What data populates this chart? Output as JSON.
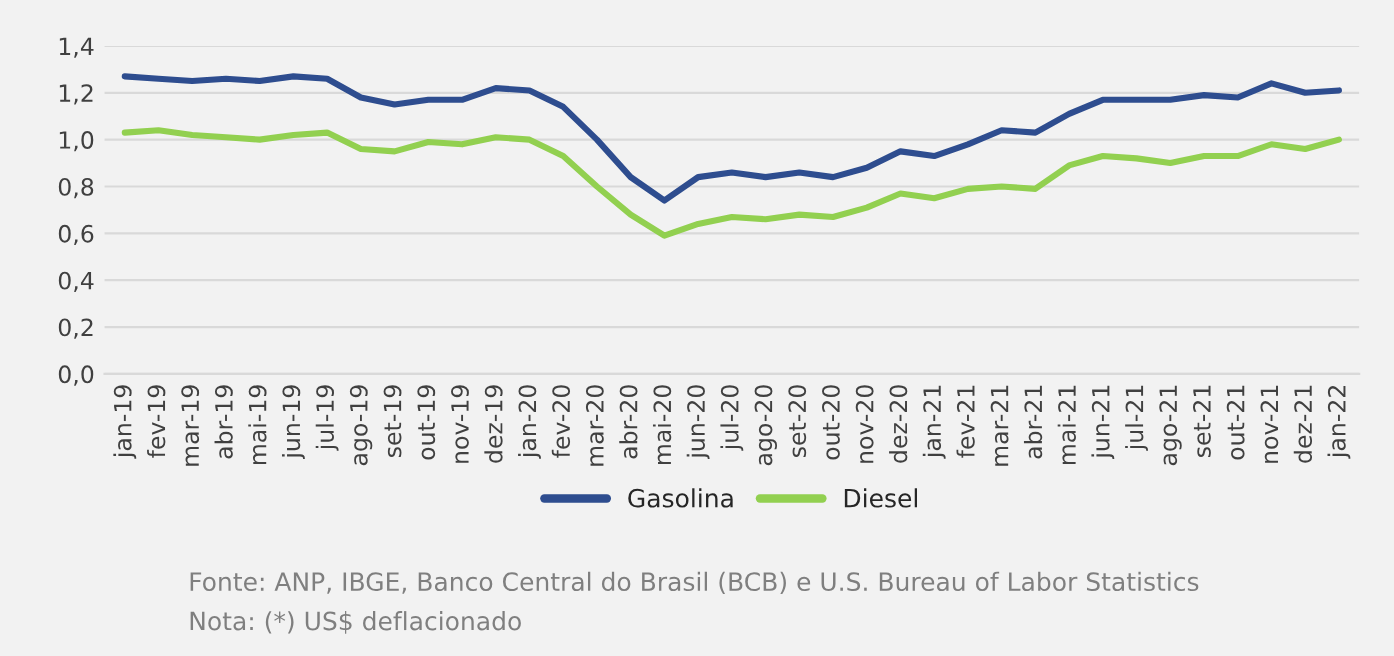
{
  "chart_data": {
    "type": "line",
    "categories": [
      "jan-19",
      "fev-19",
      "mar-19",
      "abr-19",
      "mai-19",
      "jun-19",
      "jul-19",
      "ago-19",
      "set-19",
      "out-19",
      "nov-19",
      "dez-19",
      "jan-20",
      "fev-20",
      "mar-20",
      "abr-20",
      "mai-20",
      "jun-20",
      "jul-20",
      "ago-20",
      "set-20",
      "out-20",
      "nov-20",
      "dez-20",
      "jan-21",
      "fev-21",
      "mar-21",
      "abr-21",
      "mai-21",
      "jun-21",
      "jul-21",
      "ago-21",
      "set-21",
      "out-21",
      "nov-21",
      "dez-21",
      "jan-22"
    ],
    "series": [
      {
        "name": "Gasolina",
        "color": "#2e4d8f",
        "values": [
          1.27,
          1.26,
          1.25,
          1.26,
          1.25,
          1.27,
          1.26,
          1.18,
          1.15,
          1.17,
          1.17,
          1.22,
          1.21,
          1.14,
          1.0,
          0.84,
          0.74,
          0.84,
          0.86,
          0.84,
          0.86,
          0.84,
          0.88,
          0.95,
          0.93,
          0.98,
          1.04,
          1.03,
          1.11,
          1.17,
          1.17,
          1.17,
          1.19,
          1.18,
          1.24,
          1.2,
          1.21
        ]
      },
      {
        "name": "Diesel",
        "color": "#92d050",
        "values": [
          1.03,
          1.04,
          1.02,
          1.01,
          1.0,
          1.02,
          1.03,
          0.96,
          0.95,
          0.99,
          0.98,
          1.01,
          1.0,
          0.93,
          0.8,
          0.68,
          0.59,
          0.64,
          0.67,
          0.66,
          0.68,
          0.67,
          0.71,
          0.77,
          0.75,
          0.79,
          0.8,
          0.79,
          0.89,
          0.93,
          0.92,
          0.9,
          0.93,
          0.93,
          0.98,
          0.96,
          1.0
        ]
      }
    ],
    "ylim": [
      0,
      1.4
    ],
    "yticks": [
      {
        "value": 0,
        "label": "0,0"
      },
      {
        "value": 0.2,
        "label": "0,2"
      },
      {
        "value": 0.4,
        "label": "0,4"
      },
      {
        "value": 0.6,
        "label": "0,6"
      },
      {
        "value": 0.8,
        "label": "0,8"
      },
      {
        "value": 1.0,
        "label": "1,0"
      },
      {
        "value": 1.2,
        "label": "1,2"
      },
      {
        "value": 1.4,
        "label": "1,4"
      }
    ],
    "grid": "y",
    "legend": "bottom",
    "annotations": [
      "Fonte: ANP, IBGE, Banco Central do Brasil (BCB) e U.S. Bureau of Labor Statistics",
      "Nota: (*) US$ deflacionado"
    ]
  }
}
